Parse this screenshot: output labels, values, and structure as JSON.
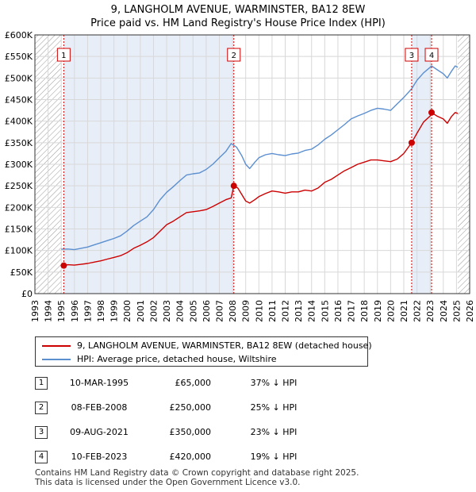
{
  "header": {
    "title_line1": "9, LANGHOLM AVENUE, WARMINSTER, BA12 8EW",
    "title_line2": "Price paid vs. HM Land Registry's House Price Index (HPI)"
  },
  "colors": {
    "property": "#cc0000",
    "hpi": "#5b8fd0",
    "grid": "#d8d8d8",
    "shade": "#e8eef8",
    "hatch": "#999999"
  },
  "chart_data": {
    "type": "line",
    "title": "Price paid vs. HM Land Registry's House Price Index (HPI)",
    "xlabel": "",
    "ylabel": "",
    "xlim": [
      1993,
      2026
    ],
    "ylim": [
      0,
      600000
    ],
    "grid": true,
    "y_ticks": [
      0,
      50000,
      100000,
      150000,
      200000,
      250000,
      300000,
      350000,
      400000,
      450000,
      500000,
      550000,
      600000
    ],
    "y_tick_labels": [
      "£0",
      "£50K",
      "£100K",
      "£150K",
      "£200K",
      "£250K",
      "£300K",
      "£350K",
      "£400K",
      "£450K",
      "£500K",
      "£550K",
      "£600K"
    ],
    "x_ticks": [
      1993,
      1994,
      1995,
      1996,
      1997,
      1998,
      1999,
      2000,
      2001,
      2002,
      2003,
      2004,
      2005,
      2006,
      2007,
      2008,
      2009,
      2010,
      2011,
      2012,
      2013,
      2014,
      2015,
      2016,
      2017,
      2018,
      2019,
      2020,
      2021,
      2022,
      2023,
      2024,
      2025,
      2026
    ],
    "hatched_ranges": [
      [
        1993,
        1995.0
      ],
      [
        2025.1,
        2026
      ]
    ],
    "shaded_ranges": [
      [
        1995.19,
        2008.1
      ],
      [
        2021.6,
        2023.11
      ]
    ],
    "series": [
      {
        "name": "9, LANGHOLM AVENUE, WARMINSTER, BA12 8EW (detached house)",
        "color": "#cc0000",
        "points": [
          [
            1995.19,
            65000
          ],
          [
            1995.5,
            67000
          ],
          [
            1996.0,
            66000
          ],
          [
            1996.5,
            68000
          ],
          [
            1997.0,
            70000
          ],
          [
            1997.5,
            73000
          ],
          [
            1998.0,
            76000
          ],
          [
            1998.5,
            80000
          ],
          [
            1999.0,
            84000
          ],
          [
            1999.5,
            88000
          ],
          [
            2000.0,
            95000
          ],
          [
            2000.5,
            105000
          ],
          [
            2001.0,
            112000
          ],
          [
            2001.5,
            120000
          ],
          [
            2002.0,
            130000
          ],
          [
            2002.5,
            145000
          ],
          [
            2003.0,
            160000
          ],
          [
            2003.5,
            168000
          ],
          [
            2004.0,
            178000
          ],
          [
            2004.5,
            188000
          ],
          [
            2005.0,
            190000
          ],
          [
            2005.5,
            192000
          ],
          [
            2006.0,
            195000
          ],
          [
            2006.5,
            202000
          ],
          [
            2007.0,
            210000
          ],
          [
            2007.5,
            218000
          ],
          [
            2007.9,
            222000
          ],
          [
            2008.1,
            250000
          ],
          [
            2008.4,
            245000
          ],
          [
            2008.7,
            230000
          ],
          [
            2009.0,
            215000
          ],
          [
            2009.3,
            210000
          ],
          [
            2009.7,
            218000
          ],
          [
            2010.0,
            225000
          ],
          [
            2010.5,
            232000
          ],
          [
            2011.0,
            238000
          ],
          [
            2011.5,
            236000
          ],
          [
            2012.0,
            233000
          ],
          [
            2012.5,
            236000
          ],
          [
            2013.0,
            236000
          ],
          [
            2013.5,
            240000
          ],
          [
            2014.0,
            238000
          ],
          [
            2014.5,
            245000
          ],
          [
            2015.0,
            258000
          ],
          [
            2015.5,
            265000
          ],
          [
            2016.0,
            275000
          ],
          [
            2016.5,
            285000
          ],
          [
            2017.0,
            292000
          ],
          [
            2017.5,
            300000
          ],
          [
            2018.0,
            305000
          ],
          [
            2018.5,
            310000
          ],
          [
            2019.0,
            310000
          ],
          [
            2019.5,
            308000
          ],
          [
            2020.0,
            306000
          ],
          [
            2020.5,
            312000
          ],
          [
            2021.0,
            325000
          ],
          [
            2021.6,
            350000
          ],
          [
            2022.0,
            372000
          ],
          [
            2022.5,
            398000
          ],
          [
            2023.0,
            412000
          ],
          [
            2023.11,
            420000
          ],
          [
            2023.5,
            412000
          ],
          [
            2024.0,
            405000
          ],
          [
            2024.3,
            395000
          ],
          [
            2024.6,
            410000
          ],
          [
            2024.9,
            420000
          ],
          [
            2025.1,
            418000
          ]
        ]
      },
      {
        "name": "HPI: Average price, detached house, Wiltshire",
        "color": "#5b8fd0",
        "points": [
          [
            1995.0,
            103000
          ],
          [
            1995.5,
            103500
          ],
          [
            1996.0,
            102000
          ],
          [
            1996.5,
            105000
          ],
          [
            1997.0,
            108000
          ],
          [
            1997.5,
            113000
          ],
          [
            1998.0,
            118000
          ],
          [
            1998.5,
            123000
          ],
          [
            1999.0,
            128000
          ],
          [
            1999.5,
            134000
          ],
          [
            2000.0,
            145000
          ],
          [
            2000.5,
            158000
          ],
          [
            2001.0,
            168000
          ],
          [
            2001.5,
            178000
          ],
          [
            2002.0,
            195000
          ],
          [
            2002.5,
            218000
          ],
          [
            2003.0,
            235000
          ],
          [
            2003.5,
            248000
          ],
          [
            2004.0,
            262000
          ],
          [
            2004.5,
            275000
          ],
          [
            2005.0,
            278000
          ],
          [
            2005.5,
            280000
          ],
          [
            2006.0,
            288000
          ],
          [
            2006.5,
            300000
          ],
          [
            2007.0,
            315000
          ],
          [
            2007.5,
            330000
          ],
          [
            2007.9,
            348000
          ],
          [
            2008.3,
            340000
          ],
          [
            2008.7,
            320000
          ],
          [
            2009.0,
            300000
          ],
          [
            2009.3,
            290000
          ],
          [
            2009.7,
            305000
          ],
          [
            2010.0,
            315000
          ],
          [
            2010.5,
            322000
          ],
          [
            2011.0,
            325000
          ],
          [
            2011.5,
            322000
          ],
          [
            2012.0,
            320000
          ],
          [
            2012.5,
            324000
          ],
          [
            2013.0,
            326000
          ],
          [
            2013.5,
            332000
          ],
          [
            2014.0,
            335000
          ],
          [
            2014.5,
            345000
          ],
          [
            2015.0,
            358000
          ],
          [
            2015.5,
            368000
          ],
          [
            2016.0,
            380000
          ],
          [
            2016.5,
            392000
          ],
          [
            2017.0,
            405000
          ],
          [
            2017.5,
            412000
          ],
          [
            2018.0,
            418000
          ],
          [
            2018.5,
            425000
          ],
          [
            2019.0,
            430000
          ],
          [
            2019.5,
            428000
          ],
          [
            2020.0,
            425000
          ],
          [
            2020.5,
            440000
          ],
          [
            2021.0,
            455000
          ],
          [
            2021.6,
            475000
          ],
          [
            2022.0,
            495000
          ],
          [
            2022.5,
            512000
          ],
          [
            2023.0,
            525000
          ],
          [
            2023.11,
            528000
          ],
          [
            2023.5,
            520000
          ],
          [
            2024.0,
            510000
          ],
          [
            2024.3,
            500000
          ],
          [
            2024.6,
            515000
          ],
          [
            2024.9,
            528000
          ],
          [
            2025.1,
            525000
          ]
        ]
      }
    ],
    "sales": [
      {
        "label": "1",
        "x": 1995.19,
        "price": 65000
      },
      {
        "label": "2",
        "x": 2008.1,
        "price": 250000
      },
      {
        "label": "3",
        "x": 2021.6,
        "price": 350000
      },
      {
        "label": "4",
        "x": 2023.11,
        "price": 420000
      }
    ]
  },
  "legend": {
    "property_label": "9, LANGHOLM AVENUE, WARMINSTER, BA12 8EW (detached house)",
    "hpi_label": "HPI: Average price, detached house, Wiltshire"
  },
  "table": {
    "rows": [
      {
        "num": "1",
        "date": "10-MAR-1995",
        "price": "£65,000",
        "hpi": "37% ↓ HPI"
      },
      {
        "num": "2",
        "date": "08-FEB-2008",
        "price": "£250,000",
        "hpi": "25% ↓ HPI"
      },
      {
        "num": "3",
        "date": "09-AUG-2021",
        "price": "£350,000",
        "hpi": "23% ↓ HPI"
      },
      {
        "num": "4",
        "date": "10-FEB-2023",
        "price": "£420,000",
        "hpi": "19% ↓ HPI"
      }
    ]
  },
  "footer": {
    "line1": "Contains HM Land Registry data © Crown copyright and database right 2025.",
    "line2": "This data is licensed under the Open Government Licence v3.0."
  }
}
